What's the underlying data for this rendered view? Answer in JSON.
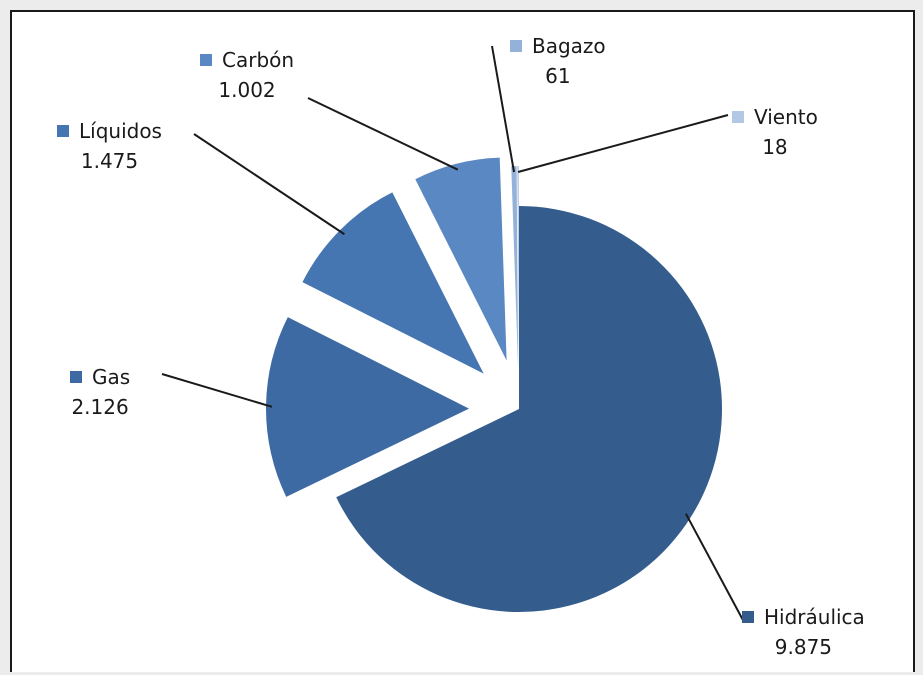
{
  "chart_data": {
    "type": "pie",
    "title": "",
    "exploded": true,
    "data_labels": true,
    "slices": [
      {
        "name": "Hidráulica",
        "label": "Hidráulica",
        "value": 9875,
        "value_label": "9.875",
        "color": "#345d8e"
      },
      {
        "name": "Gas",
        "label": "Gas",
        "value": 2126,
        "value_label": "2.126",
        "color": "#3d6aa3"
      },
      {
        "name": "Líquidos",
        "label": "Líquidos",
        "value": 1475,
        "value_label": "1.475",
        "color": "#4676b2"
      },
      {
        "name": "Carbón",
        "label": "Carbón",
        "value": 1002,
        "value_label": "1.002",
        "color": "#5a88c2"
      },
      {
        "name": "Bagazo",
        "label": "Bagazo",
        "value": 61,
        "value_label": "61",
        "color": "#94b2d9"
      },
      {
        "name": "Viento",
        "label": "Viento",
        "value": 18,
        "value_label": "18",
        "color": "#b3c8e5"
      }
    ]
  }
}
